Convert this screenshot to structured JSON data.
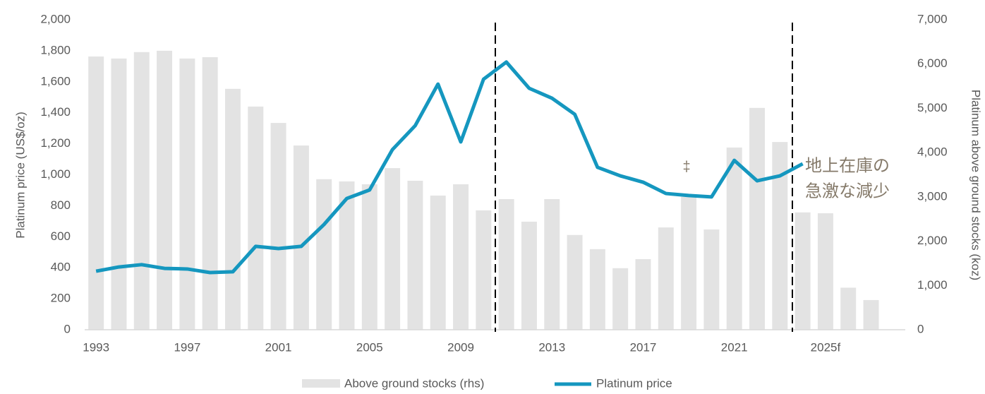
{
  "chart_data": {
    "type": "bar",
    "y_label": "Platinum price (US$/oz)",
    "y2_label": "Platinum above ground stocks (koz)",
    "categories": [
      "1993",
      null,
      null,
      null,
      "1997",
      null,
      null,
      null,
      "2001",
      null,
      null,
      null,
      "2005",
      null,
      null,
      null,
      "2009",
      null,
      null,
      null,
      "2013",
      null,
      null,
      null,
      "2017",
      null,
      null,
      null,
      "2021",
      null,
      null,
      null,
      "2025f",
      null,
      null,
      null
    ],
    "series": [
      {
        "name": "Above ground stocks (rhs)",
        "type": "bar",
        "axis": "y2",
        "color": "#e3e3e3",
        "values": [
          6170,
          6125,
          6270,
          6300,
          6125,
          6155,
          5440,
          5040,
          4670,
          4160,
          3400,
          3350,
          3285,
          3650,
          3365,
          3030,
          3285,
          2695,
          2950,
          2440,
          2950,
          2140,
          1820,
          1390,
          1595,
          2310,
          3000,
          2265,
          4115,
          5010,
          4240,
          2650,
          2630,
          950,
          670,
          null
        ]
      },
      {
        "name": "Platinum price",
        "type": "line",
        "color": "#1597bf",
        "values": [
          378,
          405,
          420,
          396,
          392,
          369,
          374,
          538,
          524,
          538,
          679,
          847,
          902,
          1162,
          1317,
          1585,
          1212,
          1617,
          1727,
          1558,
          1494,
          1390,
          1048,
          993,
          952,
          879,
          866,
          857,
          1093,
          961,
          993,
          1071,
          null,
          null,
          null,
          null
        ]
      }
    ],
    "ylim": [
      0,
      2000
    ],
    "yticks": [
      0,
      200,
      400,
      600,
      800,
      {
        "value": 1000,
        "label": "1,000"
      },
      {
        "value": 1200,
        "label": "1,200"
      },
      {
        "value": 1400,
        "label": "1,400"
      },
      {
        "value": 1600,
        "label": "1,600"
      },
      {
        "value": 1800,
        "label": "1,800"
      },
      {
        "value": 2000,
        "label": "2,000"
      }
    ],
    "y2lim": [
      0,
      7000
    ],
    "y2ticks": [
      0,
      {
        "value": 1000,
        "label": "1,000"
      },
      {
        "value": 2000,
        "label": "2,000"
      },
      {
        "value": 3000,
        "label": "3,000"
      },
      {
        "value": 4000,
        "label": "4,000"
      },
      {
        "value": 5000,
        "label": "5,000"
      },
      {
        "value": 6000,
        "label": "6,000"
      },
      {
        "value": 7000,
        "label": "7,000"
      }
    ],
    "grid": false,
    "legend": "bottom",
    "annotations": [
      "‡",
      "地上在庫の",
      "急激な減少"
    ]
  }
}
